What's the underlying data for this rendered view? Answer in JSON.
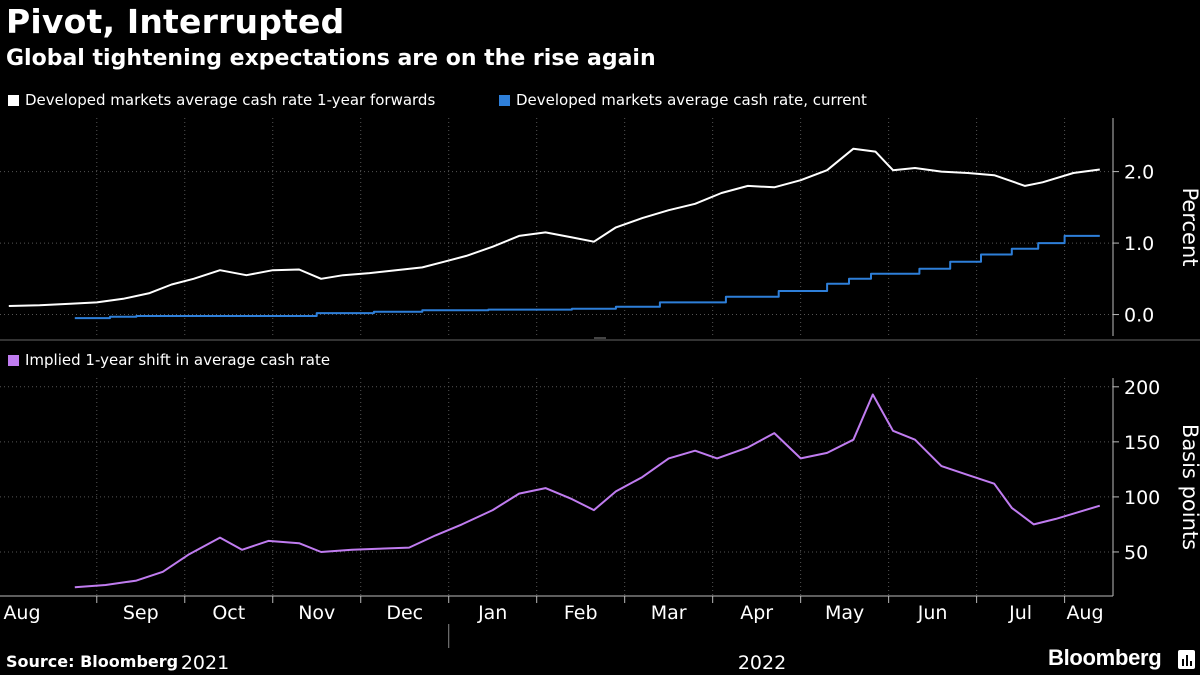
{
  "title": "Pivot, Interrupted",
  "subtitle": "Global tightening expectations are on the rise again",
  "source": "Source: Bloomberg",
  "brand": "Bloomberg",
  "colors": {
    "background": "#000000",
    "forwards": "#ffffff",
    "current": "#2e7fd9",
    "implied": "#c07cf0",
    "grid": "#555555"
  },
  "months": [
    "Aug",
    "Sep",
    "Oct",
    "Nov",
    "Dec",
    "Jan",
    "Feb",
    "Mar",
    "Apr",
    "May",
    "Jun",
    "Jul",
    "Aug"
  ],
  "years": [
    "2021",
    "2022"
  ],
  "chart_data": [
    {
      "type": "line",
      "panel": "top",
      "ylabel": "Percent",
      "ylim": [
        -0.3,
        2.75
      ],
      "yticks": [
        0.0,
        1.0,
        2.0
      ],
      "ytick_labels": [
        "0.0",
        "1.0",
        "2.0"
      ],
      "legend": [
        "Developed markets average cash rate 1-year forwards",
        "Developed markets average cash rate, current"
      ],
      "x_unit": "months since 1 Aug 2021",
      "series": [
        {
          "name": "Developed markets average cash rate 1-year forwards",
          "color_key": "forwards",
          "x": [
            0.0,
            0.35,
            0.7,
            1.0,
            1.3,
            1.6,
            1.85,
            2.1,
            2.4,
            2.7,
            3.0,
            3.3,
            3.55,
            3.8,
            4.1,
            4.4,
            4.7,
            4.95,
            5.2,
            5.5,
            5.8,
            6.1,
            6.4,
            6.65,
            6.9,
            7.2,
            7.5,
            7.8,
            8.1,
            8.4,
            8.7,
            9.0,
            9.3,
            9.6,
            9.85,
            10.05,
            10.3,
            10.6,
            10.9,
            11.2,
            11.55,
            11.75,
            12.1,
            12.4
          ],
          "y": [
            0.12,
            0.13,
            0.15,
            0.17,
            0.22,
            0.3,
            0.42,
            0.5,
            0.62,
            0.55,
            0.62,
            0.63,
            0.5,
            0.55,
            0.58,
            0.62,
            0.66,
            0.74,
            0.82,
            0.95,
            1.1,
            1.15,
            1.08,
            1.02,
            1.22,
            1.35,
            1.46,
            1.55,
            1.7,
            1.8,
            1.78,
            1.88,
            2.02,
            2.32,
            2.28,
            2.02,
            2.05,
            2.0,
            1.98,
            1.95,
            1.8,
            1.85,
            1.98,
            2.03
          ]
        },
        {
          "name": "Developed markets average cash rate, current",
          "color_key": "current",
          "x": [
            0.75,
            1.15,
            1.45,
            3.5,
            4.15,
            4.7,
            5.45,
            6.4,
            6.9,
            7.4,
            8.15,
            8.75,
            9.3,
            9.55,
            9.8,
            10.35,
            10.7,
            11.05,
            11.4,
            11.7,
            12.0,
            12.4
          ],
          "y": [
            -0.05,
            -0.03,
            -0.02,
            0.02,
            0.04,
            0.06,
            0.07,
            0.08,
            0.11,
            0.17,
            0.25,
            0.33,
            0.43,
            0.5,
            0.57,
            0.64,
            0.74,
            0.84,
            0.92,
            1.0,
            1.1,
            1.1
          ]
        }
      ]
    },
    {
      "type": "line",
      "panel": "bottom",
      "ylabel": "Basis points",
      "ylim": [
        10,
        208
      ],
      "yticks": [
        50,
        100,
        150,
        200
      ],
      "ytick_labels": [
        "50",
        "100",
        "150",
        "200"
      ],
      "legend": [
        "Implied 1-year shift in average cash rate"
      ],
      "x_unit": "months since 1 Aug 2021",
      "series": [
        {
          "name": "Implied 1-year shift in average cash rate",
          "color_key": "implied",
          "x": [
            0.75,
            1.1,
            1.45,
            1.75,
            2.05,
            2.4,
            2.65,
            2.95,
            3.3,
            3.55,
            3.9,
            4.2,
            4.55,
            4.85,
            5.15,
            5.5,
            5.8,
            6.1,
            6.4,
            6.65,
            6.9,
            7.2,
            7.5,
            7.8,
            8.05,
            8.4,
            8.7,
            9.0,
            9.3,
            9.6,
            9.82,
            10.05,
            10.3,
            10.6,
            10.9,
            11.2,
            11.4,
            11.65,
            11.9,
            12.15,
            12.4
          ],
          "y": [
            18,
            20,
            24,
            32,
            48,
            63,
            52,
            60,
            58,
            50,
            52,
            53,
            54,
            65,
            75,
            88,
            103,
            108,
            98,
            88,
            105,
            118,
            135,
            142,
            135,
            145,
            158,
            135,
            140,
            152,
            193,
            160,
            152,
            128,
            120,
            112,
            90,
            75,
            80,
            86,
            92
          ]
        }
      ]
    }
  ]
}
